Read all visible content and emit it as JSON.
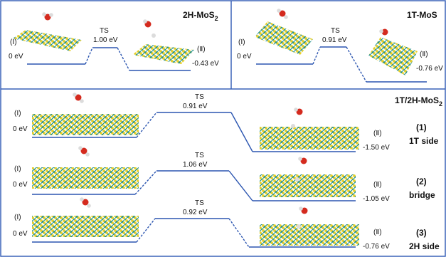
{
  "panels": {
    "p2h": {
      "title_main": "2H-MoS",
      "title_sub": "2",
      "state1": "(Ⅰ)",
      "energy1": "0 eV",
      "ts": "TS",
      "ts_energy": "1.00 eV",
      "state2": "(Ⅱ)",
      "energy2": "-0.43 eV"
    },
    "p1t": {
      "title_main": "1T-MoS",
      "state1": "(Ⅰ)",
      "energy1": "0 eV",
      "ts": "TS",
      "ts_energy": "0.91 eV",
      "state2": "(Ⅱ)",
      "energy2": "-0.76 eV"
    },
    "p_het": {
      "title_main": "1T/2H-MoS",
      "title_sub": "2",
      "rows": [
        {
          "state1": "(Ⅰ)",
          "energy1": "0 eV",
          "ts": "TS",
          "ts_energy": "0.91 eV",
          "state2": "(Ⅱ)",
          "energy2": "-1.50 eV",
          "case_num": "(1)",
          "case_name": "1T side"
        },
        {
          "state1": "(Ⅰ)",
          "energy1": "0 eV",
          "ts": "TS",
          "ts_energy": "1.06 eV",
          "state2": "(Ⅱ)",
          "energy2": "-1.05 eV",
          "case_num": "(2)",
          "case_name": "bridge"
        },
        {
          "state1": "(Ⅰ)",
          "energy1": "0 eV",
          "ts": "TS",
          "ts_energy": "0.92 eV",
          "state2": "(Ⅱ)",
          "energy2": "-0.76 eV",
          "case_num": "(3)",
          "case_name": "2H side"
        }
      ]
    }
  },
  "colors": {
    "line": "#2b55b0",
    "frame": "#3a62b8",
    "mo": "#1f8f8a",
    "s": "#e8cf27",
    "o": "#d42a1e",
    "h": "#e0e0e0"
  }
}
